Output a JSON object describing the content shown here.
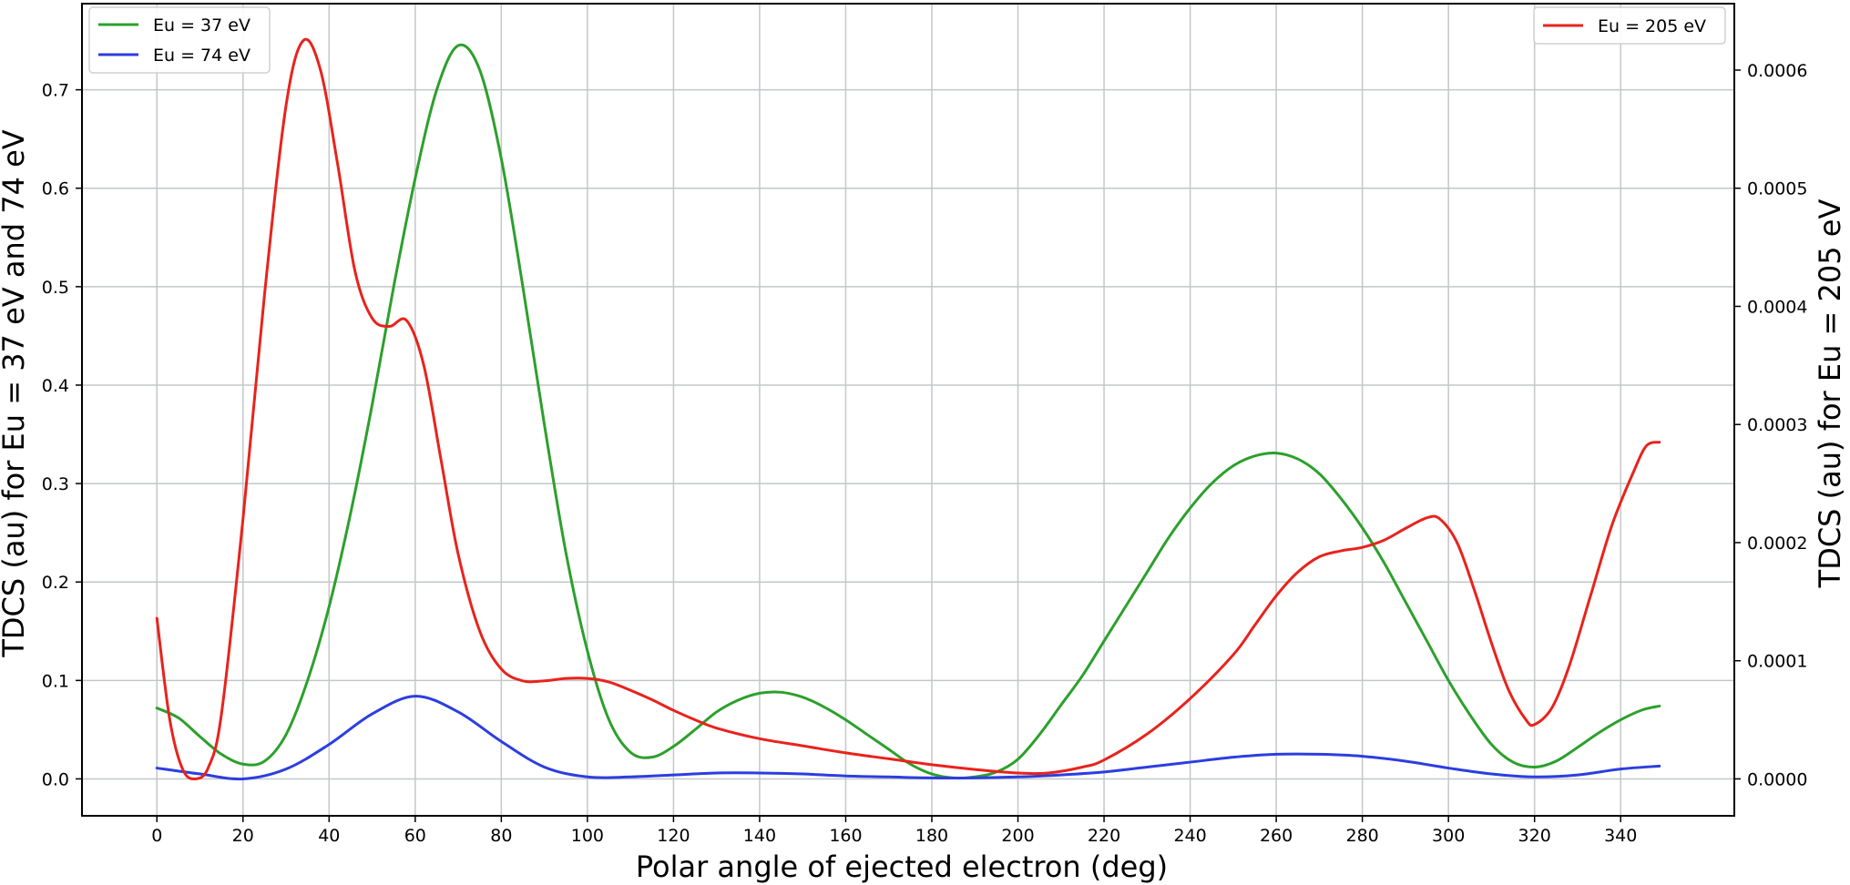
{
  "chart_data": {
    "type": "line",
    "xlabel": "Polar angle of ejected electron (deg)",
    "ylabel_left": "TDCS (au) for Eu = 37 eV and 74 eV",
    "ylabel_right": "TDCS (au) for Eu = 205 eV",
    "xlim": [
      -17.4,
      366.4
    ],
    "ylim_left": [
      -0.0375,
      0.7875
    ],
    "ylim_right": [
      -3.125e-05,
      0.00065625
    ],
    "x_ticks": [
      0,
      20,
      40,
      60,
      80,
      100,
      120,
      140,
      160,
      180,
      200,
      220,
      240,
      260,
      280,
      300,
      320,
      340
    ],
    "y_ticks_left": [
      0.0,
      0.1,
      0.2,
      0.3,
      0.4,
      0.5,
      0.6,
      0.7
    ],
    "y_tick_labels_left": [
      "0.0",
      "0.1",
      "0.2",
      "0.3",
      "0.4",
      "0.5",
      "0.6",
      "0.7"
    ],
    "y_ticks_right": [
      0.0,
      0.0001,
      0.0002,
      0.0003,
      0.0004,
      0.0005,
      0.0006
    ],
    "y_tick_labels_right": [
      "0.0000",
      "0.0001",
      "0.0002",
      "0.0003",
      "0.0004",
      "0.0005",
      "0.0006"
    ],
    "grid": true,
    "legend_left": [
      "Eu = 37 eV",
      "Eu = 74 eV"
    ],
    "legend_right": [
      "Eu = 205 eV"
    ],
    "legend_left_position": "top-left",
    "legend_right_position": "top-right",
    "series": [
      {
        "name": "Eu = 37 eV",
        "axis": "left",
        "color": "#2ca02c",
        "points": [
          [
            0,
            0.072
          ],
          [
            5,
            0.062
          ],
          [
            10,
            0.043
          ],
          [
            15,
            0.025
          ],
          [
            20,
            0.015
          ],
          [
            25,
            0.018
          ],
          [
            30,
            0.045
          ],
          [
            35,
            0.1
          ],
          [
            40,
            0.175
          ],
          [
            45,
            0.27
          ],
          [
            50,
            0.38
          ],
          [
            55,
            0.5
          ],
          [
            60,
            0.61
          ],
          [
            65,
            0.7
          ],
          [
            70,
            0.745
          ],
          [
            75,
            0.72
          ],
          [
            80,
            0.63
          ],
          [
            85,
            0.5
          ],
          [
            90,
            0.36
          ],
          [
            95,
            0.23
          ],
          [
            100,
            0.13
          ],
          [
            105,
            0.06
          ],
          [
            110,
            0.027
          ],
          [
            115,
            0.022
          ],
          [
            120,
            0.033
          ],
          [
            125,
            0.05
          ],
          [
            130,
            0.068
          ],
          [
            135,
            0.08
          ],
          [
            140,
            0.087
          ],
          [
            145,
            0.088
          ],
          [
            150,
            0.083
          ],
          [
            155,
            0.073
          ],
          [
            160,
            0.06
          ],
          [
            165,
            0.045
          ],
          [
            170,
            0.03
          ],
          [
            175,
            0.015
          ],
          [
            180,
            0.005
          ],
          [
            185,
            0.001
          ],
          [
            190,
            0.002
          ],
          [
            195,
            0.007
          ],
          [
            200,
            0.02
          ],
          [
            205,
            0.045
          ],
          [
            210,
            0.075
          ],
          [
            215,
            0.105
          ],
          [
            220,
            0.14
          ],
          [
            225,
            0.175
          ],
          [
            230,
            0.21
          ],
          [
            235,
            0.245
          ],
          [
            240,
            0.275
          ],
          [
            245,
            0.3
          ],
          [
            250,
            0.318
          ],
          [
            255,
            0.328
          ],
          [
            260,
            0.331
          ],
          [
            265,
            0.325
          ],
          [
            270,
            0.31
          ],
          [
            275,
            0.285
          ],
          [
            280,
            0.255
          ],
          [
            285,
            0.22
          ],
          [
            290,
            0.18
          ],
          [
            295,
            0.14
          ],
          [
            300,
            0.1
          ],
          [
            305,
            0.065
          ],
          [
            310,
            0.035
          ],
          [
            315,
            0.017
          ],
          [
            320,
            0.012
          ],
          [
            325,
            0.018
          ],
          [
            330,
            0.032
          ],
          [
            335,
            0.047
          ],
          [
            340,
            0.06
          ],
          [
            345,
            0.07
          ],
          [
            349,
            0.074
          ]
        ]
      },
      {
        "name": "Eu = 74 eV",
        "axis": "left",
        "color": "#2c3ee0",
        "points": [
          [
            0,
            0.011
          ],
          [
            10,
            0.005
          ],
          [
            20,
            0.0
          ],
          [
            30,
            0.01
          ],
          [
            40,
            0.035
          ],
          [
            50,
            0.066
          ],
          [
            60,
            0.084
          ],
          [
            70,
            0.068
          ],
          [
            80,
            0.038
          ],
          [
            90,
            0.012
          ],
          [
            100,
            0.002
          ],
          [
            110,
            0.002
          ],
          [
            120,
            0.004
          ],
          [
            130,
            0.006
          ],
          [
            140,
            0.006
          ],
          [
            150,
            0.005
          ],
          [
            160,
            0.003
          ],
          [
            170,
            0.002
          ],
          [
            180,
            0.001
          ],
          [
            190,
            0.001
          ],
          [
            200,
            0.002
          ],
          [
            210,
            0.004
          ],
          [
            220,
            0.007
          ],
          [
            230,
            0.012
          ],
          [
            240,
            0.017
          ],
          [
            250,
            0.022
          ],
          [
            260,
            0.025
          ],
          [
            270,
            0.025
          ],
          [
            280,
            0.023
          ],
          [
            290,
            0.018
          ],
          [
            300,
            0.011
          ],
          [
            310,
            0.005
          ],
          [
            320,
            0.002
          ],
          [
            330,
            0.004
          ],
          [
            340,
            0.01
          ],
          [
            349,
            0.013
          ]
        ]
      },
      {
        "name": "Eu = 205 eV",
        "axis": "right",
        "color": "#e8231c",
        "points": [
          [
            0,
            0.000136
          ],
          [
            3,
            5e-05
          ],
          [
            6,
            8e-06
          ],
          [
            9,
            0.0
          ],
          [
            12,
            1e-05
          ],
          [
            15,
            5.5e-05
          ],
          [
            20,
            0.00022
          ],
          [
            25,
            0.00041
          ],
          [
            30,
            0.00057
          ],
          [
            34,
            0.000625
          ],
          [
            38,
            0.0006
          ],
          [
            42,
            0.00052
          ],
          [
            46,
            0.00043
          ],
          [
            50,
            0.00039
          ],
          [
            54,
            0.000383
          ],
          [
            58,
            0.000388
          ],
          [
            62,
            0.00035
          ],
          [
            66,
            0.00027
          ],
          [
            70,
            0.00019
          ],
          [
            75,
            0.000125
          ],
          [
            80,
            9.3e-05
          ],
          [
            85,
            8.3e-05
          ],
          [
            90,
            8.3e-05
          ],
          [
            95,
            8.5e-05
          ],
          [
            100,
            8.5e-05
          ],
          [
            105,
            8.2e-05
          ],
          [
            110,
            7.5e-05
          ],
          [
            115,
            6.7e-05
          ],
          [
            120,
            5.8e-05
          ],
          [
            125,
            5e-05
          ],
          [
            130,
            4.3e-05
          ],
          [
            140,
            3.4e-05
          ],
          [
            150,
            2.8e-05
          ],
          [
            160,
            2.2e-05
          ],
          [
            170,
            1.7e-05
          ],
          [
            180,
            1.2e-05
          ],
          [
            190,
            8e-06
          ],
          [
            200,
            5e-06
          ],
          [
            207,
            5e-06
          ],
          [
            215,
            1e-05
          ],
          [
            220,
            1.6e-05
          ],
          [
            230,
            3.8e-05
          ],
          [
            240,
            6.8e-05
          ],
          [
            250,
            0.000105
          ],
          [
            255,
            0.00013
          ],
          [
            260,
            0.000155
          ],
          [
            265,
            0.000175
          ],
          [
            270,
            0.000188
          ],
          [
            275,
            0.000193
          ],
          [
            280,
            0.000196
          ],
          [
            285,
            0.000202
          ],
          [
            290,
            0.000212
          ],
          [
            295,
            0.000221
          ],
          [
            298,
            0.00022
          ],
          [
            302,
            0.0002
          ],
          [
            306,
            0.00016
          ],
          [
            310,
            0.000115
          ],
          [
            314,
            7.5e-05
          ],
          [
            318,
            5e-05
          ],
          [
            320,
            4.6e-05
          ],
          [
            324,
            6e-05
          ],
          [
            328,
            9.5e-05
          ],
          [
            333,
            0.000155
          ],
          [
            338,
            0.000215
          ],
          [
            343,
            0.00026
          ],
          [
            346,
            0.000282
          ],
          [
            349,
            0.000285
          ]
        ]
      }
    ]
  }
}
